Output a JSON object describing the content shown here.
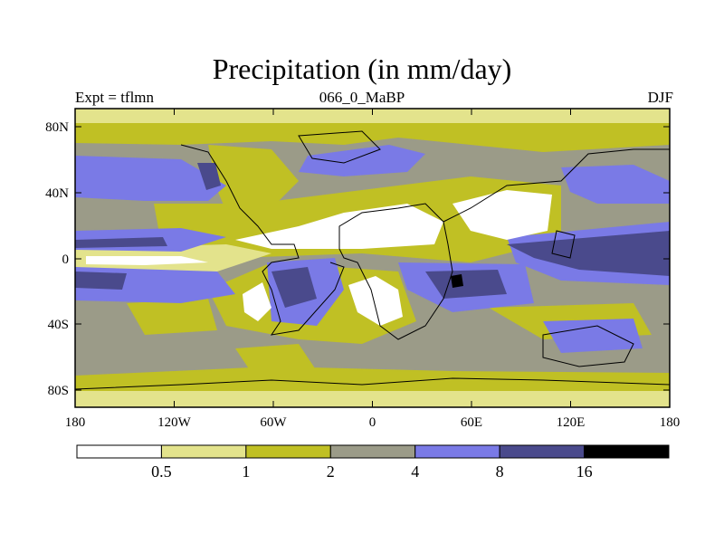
{
  "title": "Precipitation (in mm/day)",
  "subtitle_left": "Expt = tflmn",
  "subtitle_center": "066_0_MaBP",
  "subtitle_right": "DJF",
  "lat_ticks": [
    "80N",
    "40N",
    "0",
    "40S",
    "80S"
  ],
  "lon_ticks": [
    "180",
    "120W",
    "60W",
    "0",
    "60E",
    "120E",
    "180"
  ],
  "colorbar": {
    "labels": [
      "0.5",
      "1",
      "2",
      "4",
      "8",
      "16"
    ],
    "colors": [
      "#ffffff",
      "#e3e38c",
      "#c0c024",
      "#9b9b88",
      "#7a7ae6",
      "#4a4a8c",
      "#000000"
    ]
  }
}
